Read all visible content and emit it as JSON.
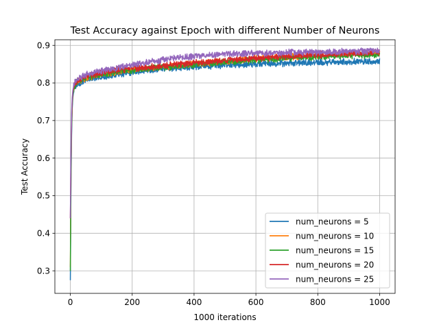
{
  "chart_data": {
    "type": "line",
    "title": "Test Accuracy against Epoch with different Number of Neurons",
    "xlabel": "1000 iterations",
    "ylabel": "Test Accuracy",
    "xlim": [
      -50,
      1050
    ],
    "ylim": [
      0.24,
      0.915
    ],
    "xticks": [
      0,
      200,
      400,
      600,
      800,
      1000
    ],
    "yticks": [
      0.3,
      0.4,
      0.5,
      0.6,
      0.7,
      0.8,
      0.9
    ],
    "grid": true,
    "legend_position": "lower-right",
    "series": [
      {
        "name": "num_neurons = 5",
        "color": "#1f77b4",
        "x": [
          0,
          2,
          4,
          6,
          8,
          12,
          20,
          40,
          60,
          100,
          150,
          200,
          300,
          400,
          500,
          600,
          700,
          800,
          900,
          1000
        ],
        "values": [
          0.275,
          0.52,
          0.66,
          0.73,
          0.76,
          0.785,
          0.795,
          0.805,
          0.81,
          0.815,
          0.822,
          0.83,
          0.838,
          0.843,
          0.848,
          0.851,
          0.853,
          0.855,
          0.856,
          0.857
        ]
      },
      {
        "name": "num_neurons = 10",
        "color": "#ff7f0e",
        "x": [
          0,
          2,
          4,
          6,
          8,
          12,
          20,
          40,
          60,
          100,
          150,
          200,
          300,
          400,
          500,
          600,
          700,
          800,
          900,
          1000
        ],
        "values": [
          0.31,
          0.56,
          0.69,
          0.745,
          0.77,
          0.79,
          0.8,
          0.81,
          0.815,
          0.822,
          0.83,
          0.835,
          0.843,
          0.85,
          0.858,
          0.864,
          0.869,
          0.873,
          0.877,
          0.88
        ]
      },
      {
        "name": "num_neurons = 15",
        "color": "#2ca02c",
        "x": [
          0,
          2,
          4,
          6,
          8,
          12,
          20,
          40,
          60,
          100,
          150,
          200,
          300,
          400,
          500,
          600,
          700,
          800,
          900,
          1000
        ],
        "values": [
          0.3,
          0.55,
          0.68,
          0.74,
          0.768,
          0.788,
          0.8,
          0.81,
          0.815,
          0.822,
          0.83,
          0.834,
          0.842,
          0.848,
          0.855,
          0.861,
          0.866,
          0.87,
          0.873,
          0.875
        ]
      },
      {
        "name": "num_neurons = 20",
        "color": "#d62728",
        "x": [
          0,
          2,
          4,
          6,
          8,
          12,
          20,
          40,
          60,
          100,
          150,
          200,
          300,
          400,
          500,
          600,
          700,
          800,
          900,
          1000
        ],
        "values": [
          0.44,
          0.6,
          0.7,
          0.75,
          0.775,
          0.793,
          0.803,
          0.813,
          0.82,
          0.827,
          0.834,
          0.838,
          0.846,
          0.853,
          0.86,
          0.866,
          0.871,
          0.875,
          0.879,
          0.882
        ]
      },
      {
        "name": "num_neurons = 25",
        "color": "#9467bd",
        "x": [
          0,
          2,
          4,
          6,
          8,
          12,
          20,
          40,
          60,
          100,
          150,
          200,
          300,
          400,
          500,
          600,
          700,
          800,
          900,
          1000
        ],
        "values": [
          0.44,
          0.62,
          0.72,
          0.76,
          0.78,
          0.797,
          0.808,
          0.818,
          0.824,
          0.832,
          0.84,
          0.848,
          0.862,
          0.872,
          0.877,
          0.879,
          0.881,
          0.882,
          0.884,
          0.886
        ]
      }
    ]
  }
}
